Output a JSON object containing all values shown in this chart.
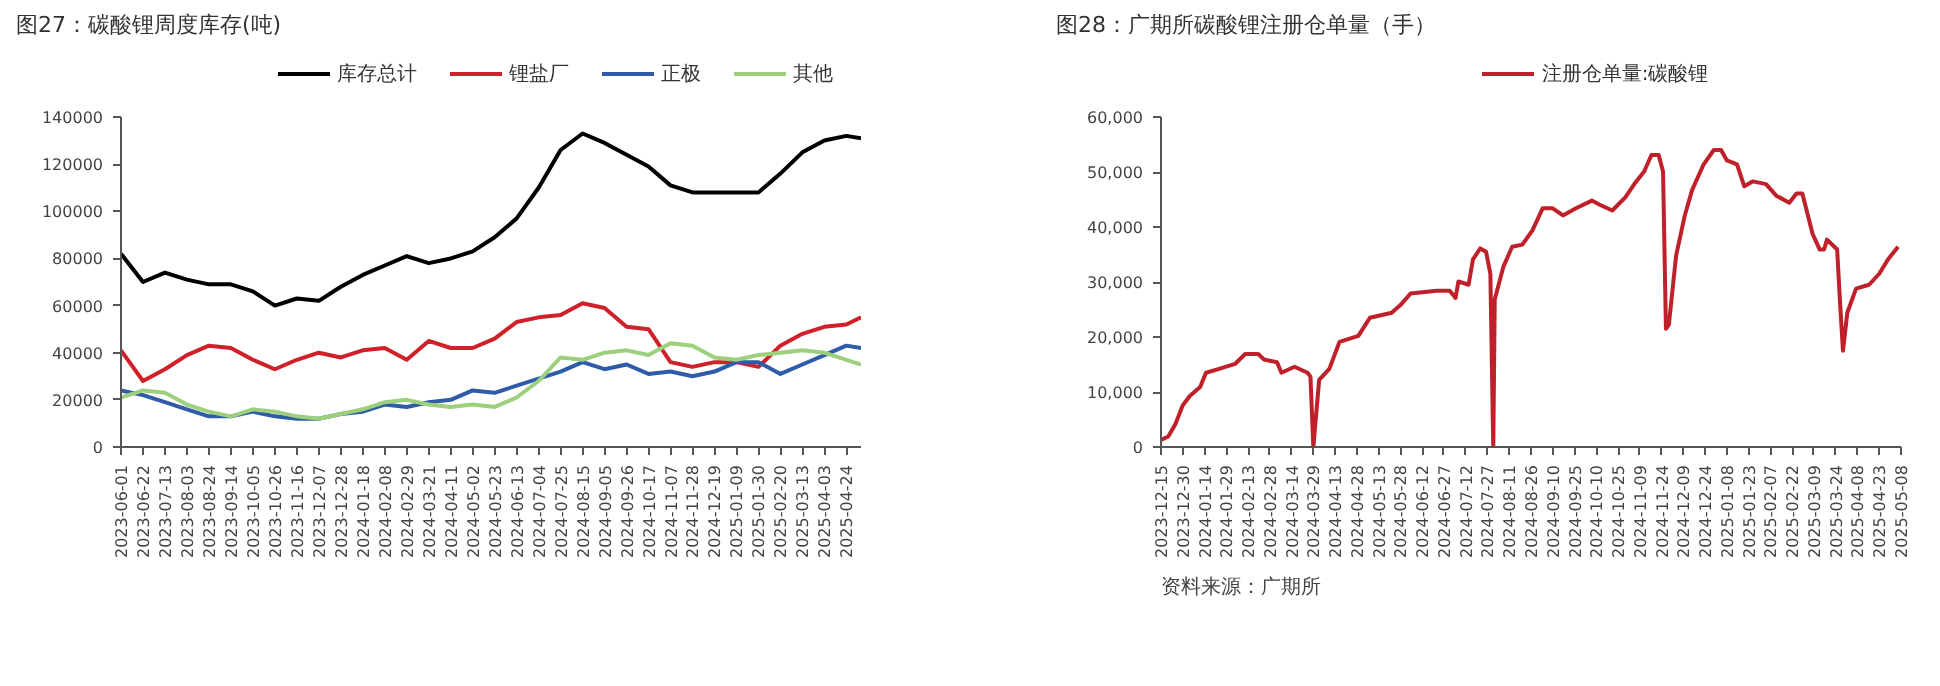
{
  "chart_data": [
    {
      "type": "line",
      "title": "图27：碳酸锂周度库存(吨)",
      "legend": "top",
      "grid": false,
      "x": [
        "2023-06-01",
        "2023-06-22",
        "2023-07-13",
        "2023-08-03",
        "2023-08-24",
        "2023-09-14",
        "2023-10-05",
        "2023-10-26",
        "2023-11-16",
        "2023-12-07",
        "2023-12-28",
        "2024-01-18",
        "2024-02-08",
        "2024-02-29",
        "2024-03-21",
        "2024-04-11",
        "2024-05-02",
        "2024-05-23",
        "2024-06-13",
        "2024-07-04",
        "2024-07-25",
        "2024-08-15",
        "2024-09-05",
        "2024-09-26",
        "2024-10-17",
        "2024-11-07",
        "2024-11-28",
        "2024-12-19",
        "2025-01-09",
        "2025-01-30",
        "2025-02-20",
        "2025-03-13",
        "2025-04-03",
        "2025-04-24",
        "2025-05-08"
      ],
      "xlim": [
        "2023-06-01",
        "2025-05-08"
      ],
      "xticks": [
        "2023-06-01",
        "2023-06-22",
        "2023-07-13",
        "2023-08-03",
        "2023-08-24",
        "2023-09-14",
        "2023-10-05",
        "2023-10-26",
        "2023-11-16",
        "2023-12-07",
        "2023-12-28",
        "2024-01-18",
        "2024-02-08",
        "2024-02-29",
        "2024-03-21",
        "2024-04-11",
        "2024-05-02",
        "2024-05-23",
        "2024-06-13",
        "2024-07-04",
        "2024-07-25",
        "2024-08-15",
        "2024-09-05",
        "2024-09-26",
        "2024-10-17",
        "2024-11-07",
        "2024-11-28",
        "2024-12-19",
        "2025-01-09",
        "2025-01-30",
        "2025-02-20",
        "2025-03-13",
        "2025-04-03",
        "2025-04-24"
      ],
      "ylim": [
        0,
        140000
      ],
      "yticks": [
        0,
        20000,
        40000,
        60000,
        80000,
        100000,
        120000,
        140000
      ],
      "series": [
        {
          "name": "库存总计",
          "color": "#000000",
          "values": [
            82000,
            70000,
            74000,
            71000,
            69000,
            69000,
            66000,
            60000,
            63000,
            62000,
            68000,
            73000,
            77000,
            81000,
            78000,
            80000,
            83000,
            89000,
            97000,
            110000,
            126000,
            133000,
            129000,
            124000,
            119000,
            111000,
            108000,
            108000,
            108000,
            108000,
            116000,
            125000,
            130000,
            132000,
            131000
          ]
        },
        {
          "name": "锂盐厂",
          "color": "#d0202a",
          "values": [
            41000,
            28000,
            33000,
            39000,
            43000,
            42000,
            37000,
            33000,
            37000,
            40000,
            38000,
            41000,
            42000,
            37000,
            45000,
            42000,
            42000,
            46000,
            53000,
            55000,
            56000,
            61000,
            59000,
            51000,
            50000,
            36000,
            34000,
            36000,
            36000,
            34000,
            43000,
            48000,
            51000,
            52000,
            55000
          ]
        },
        {
          "name": "正极",
          "color": "#2e5ca8",
          "values": [
            24000,
            22000,
            19000,
            16000,
            13000,
            13000,
            15000,
            13000,
            12000,
            12000,
            14000,
            15000,
            18000,
            17000,
            19000,
            20000,
            24000,
            23000,
            26000,
            29000,
            32000,
            36000,
            33000,
            35000,
            31000,
            32000,
            30000,
            32000,
            36000,
            36000,
            31000,
            35000,
            39000,
            43000,
            42000
          ]
        },
        {
          "name": "其他",
          "color": "#9dd07c",
          "values": [
            21000,
            24000,
            23000,
            18000,
            15000,
            13000,
            16000,
            15000,
            13000,
            12000,
            14000,
            16000,
            19000,
            20000,
            18000,
            17000,
            18000,
            17000,
            21000,
            28000,
            38000,
            37000,
            40000,
            41000,
            39000,
            44000,
            43000,
            38000,
            37000,
            39000,
            40000,
            41000,
            40000,
            37000,
            35000
          ]
        }
      ]
    },
    {
      "type": "line",
      "title": "图28：广期所碳酸锂注册仓单量（手）",
      "legend": "top",
      "grid": false,
      "annotations": [
        "资料来源：广期所"
      ],
      "x": [
        "2023-12-15",
        "2023-12-20",
        "2023-12-25",
        "2023-12-30",
        "2024-01-04",
        "2024-01-11",
        "2024-01-15",
        "2024-01-24",
        "2024-02-04",
        "2024-02-11",
        "2024-02-20",
        "2024-02-24",
        "2024-03-04",
        "2024-03-07",
        "2024-03-16",
        "2024-03-25",
        "2024-03-27",
        "2024-03-29",
        "2024-04-02",
        "2024-04-09",
        "2024-04-16",
        "2024-04-29",
        "2024-05-07",
        "2024-05-22",
        "2024-05-28",
        "2024-06-04",
        "2024-06-22",
        "2024-07-01",
        "2024-07-05",
        "2024-07-07",
        "2024-07-14",
        "2024-07-17",
        "2024-07-22",
        "2024-07-26",
        "2024-07-29",
        "2024-07-31",
        "2024-08-01",
        "2024-08-07",
        "2024-08-13",
        "2024-08-20",
        "2024-08-27",
        "2024-09-03",
        "2024-09-10",
        "2024-09-17",
        "2024-09-26",
        "2024-10-07",
        "2024-10-12",
        "2024-10-21",
        "2024-10-30",
        "2024-11-06",
        "2024-11-12",
        "2024-11-17",
        "2024-11-22",
        "2024-11-25",
        "2024-11-27",
        "2024-11-29",
        "2024-12-04",
        "2024-12-10",
        "2024-12-15",
        "2024-12-23",
        "2024-12-30",
        "2025-01-04",
        "2025-01-08",
        "2025-01-15",
        "2025-01-20",
        "2025-01-26",
        "2025-02-04",
        "2025-02-11",
        "2025-02-20",
        "2025-02-25",
        "2025-03-01",
        "2025-03-08",
        "2025-03-13",
        "2025-03-16",
        "2025-03-18",
        "2025-03-25",
        "2025-03-27",
        "2025-03-29",
        "2025-04-01",
        "2025-04-07",
        "2025-04-16",
        "2025-04-23",
        "2025-04-29",
        "2025-05-06"
      ],
      "xlim": [
        "2023-12-15",
        "2025-05-08"
      ],
      "xticks": [
        "2023-12-15",
        "2023-12-30",
        "2024-01-14",
        "2024-01-29",
        "2024-02-13",
        "2024-02-28",
        "2024-03-14",
        "2024-03-29",
        "2024-04-13",
        "2024-04-28",
        "2024-05-13",
        "2024-05-28",
        "2024-06-12",
        "2024-06-27",
        "2024-07-12",
        "2024-07-27",
        "2024-08-11",
        "2024-08-26",
        "2024-09-10",
        "2024-09-25",
        "2024-10-10",
        "2024-10-25",
        "2024-11-09",
        "2024-11-24",
        "2024-12-09",
        "2024-12-24",
        "2025-01-08",
        "2025-01-23",
        "2025-02-07",
        "2025-02-22",
        "2025-03-09",
        "2025-03-24",
        "2025-04-08",
        "2025-04-23",
        "2025-05-08"
      ],
      "ylim": [
        0,
        60000
      ],
      "yticks": [
        0,
        {
          "value": 10000,
          "label": "10,000"
        },
        {
          "value": 20000,
          "label": "20,000"
        },
        {
          "value": 30000,
          "label": "30,000"
        },
        {
          "value": 40000,
          "label": "40,000"
        },
        {
          "value": 50000,
          "label": "50,000"
        },
        {
          "value": 60000,
          "label": "60,000"
        }
      ],
      "series": [
        {
          "name": "注册仓单量:碳酸锂",
          "color": "#c0202a",
          "values": [
            1300,
            1900,
            4200,
            7600,
            9300,
            10900,
            13500,
            14200,
            15100,
            16900,
            16900,
            15900,
            15400,
            13500,
            14600,
            13500,
            12800,
            0,
            12200,
            14200,
            19100,
            20200,
            23500,
            24400,
            25800,
            27900,
            28400,
            28400,
            27100,
            30100,
            29500,
            34100,
            36100,
            35500,
            31500,
            0,
            26800,
            32800,
            36400,
            36800,
            39400,
            43400,
            43400,
            42100,
            43400,
            44800,
            44100,
            43000,
            45400,
            48100,
            50100,
            53100,
            53100,
            50100,
            21500,
            22200,
            34800,
            42100,
            46700,
            51400,
            54000,
            54000,
            52100,
            51400,
            47400,
            48300,
            47800,
            45700,
            44400,
            46100,
            46100,
            38800,
            35900,
            35900,
            37700,
            35900,
            26200,
            17500,
            24400,
            28800,
            29500,
            31500,
            34100,
            36400
          ]
        }
      ]
    }
  ]
}
